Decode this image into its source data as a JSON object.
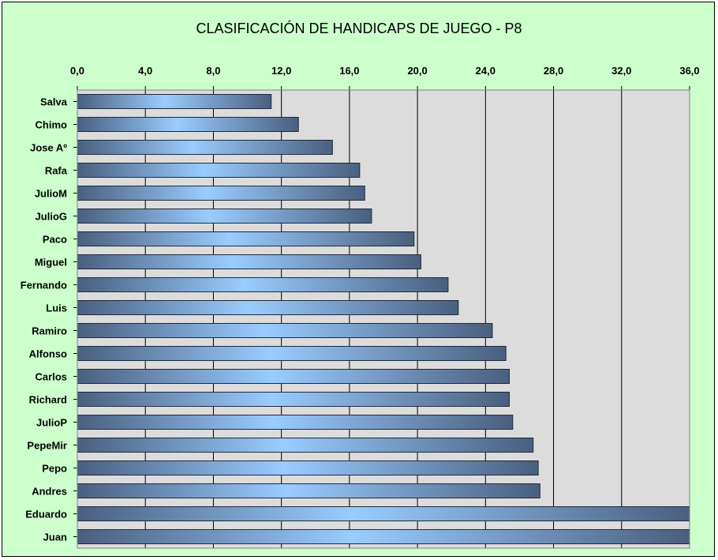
{
  "chart_data": {
    "type": "bar",
    "orientation": "horizontal",
    "title": "CLASIFICACIÓN DE HANDICAPS DE JUEGO - P8",
    "xlabel": "",
    "ylabel": "",
    "xlim": [
      0,
      36
    ],
    "x_axis_position": "top",
    "ticks": [
      "0,0",
      "4,0",
      "8,0",
      "12,0",
      "16,0",
      "20,0",
      "24,0",
      "28,0",
      "32,0",
      "36,0"
    ],
    "grid": true,
    "legend": "none",
    "categories": [
      "Salva",
      "Chimo",
      "Jose Aº",
      "Rafa",
      "JulioM",
      "JulioG",
      "Paco",
      "Miguel",
      "Fernando",
      "Luis",
      "Ramiro",
      "Alfonso",
      "Carlos",
      "Richard",
      "JulioP",
      "PepeMir",
      "Pepo",
      "Andres",
      "Eduardo",
      "Juan"
    ],
    "values": [
      11.4,
      13.0,
      15.0,
      16.6,
      16.9,
      17.3,
      19.8,
      20.2,
      21.8,
      22.4,
      24.4,
      25.2,
      25.4,
      25.4,
      25.6,
      26.8,
      27.1,
      27.2,
      36.0,
      36.0
    ],
    "colors": {
      "background": "#ccffcc",
      "plot_area": "#dcdcdc",
      "bar_dark": "#4a5f7e",
      "bar_light": "#99ccff",
      "gridline": "#000000"
    }
  }
}
